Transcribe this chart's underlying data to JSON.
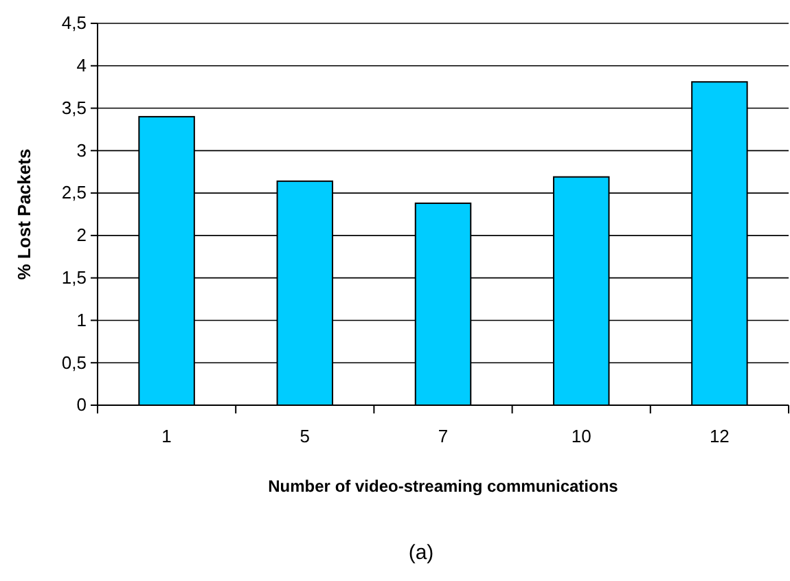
{
  "chart_data": {
    "type": "bar",
    "categories": [
      "1",
      "5",
      "7",
      "10",
      "12"
    ],
    "values": [
      3.4,
      2.64,
      2.38,
      2.69,
      3.81
    ],
    "color": "#00ccff",
    "ylabel": "% Lost Packets",
    "xlabel": "Number of video-streaming communications",
    "annotations": [
      "(a)"
    ],
    "ylim": [
      0,
      4.5
    ],
    "yticks": [
      0,
      {
        "value": 0.5,
        "label": "0,5"
      },
      1,
      {
        "value": 1.5,
        "label": "1,5"
      },
      2,
      {
        "value": 2.5,
        "label": "2,5"
      },
      3,
      {
        "value": 3.5,
        "label": "3,5"
      },
      4,
      {
        "value": 4.5,
        "label": "4,5"
      }
    ],
    "grid": "y"
  }
}
